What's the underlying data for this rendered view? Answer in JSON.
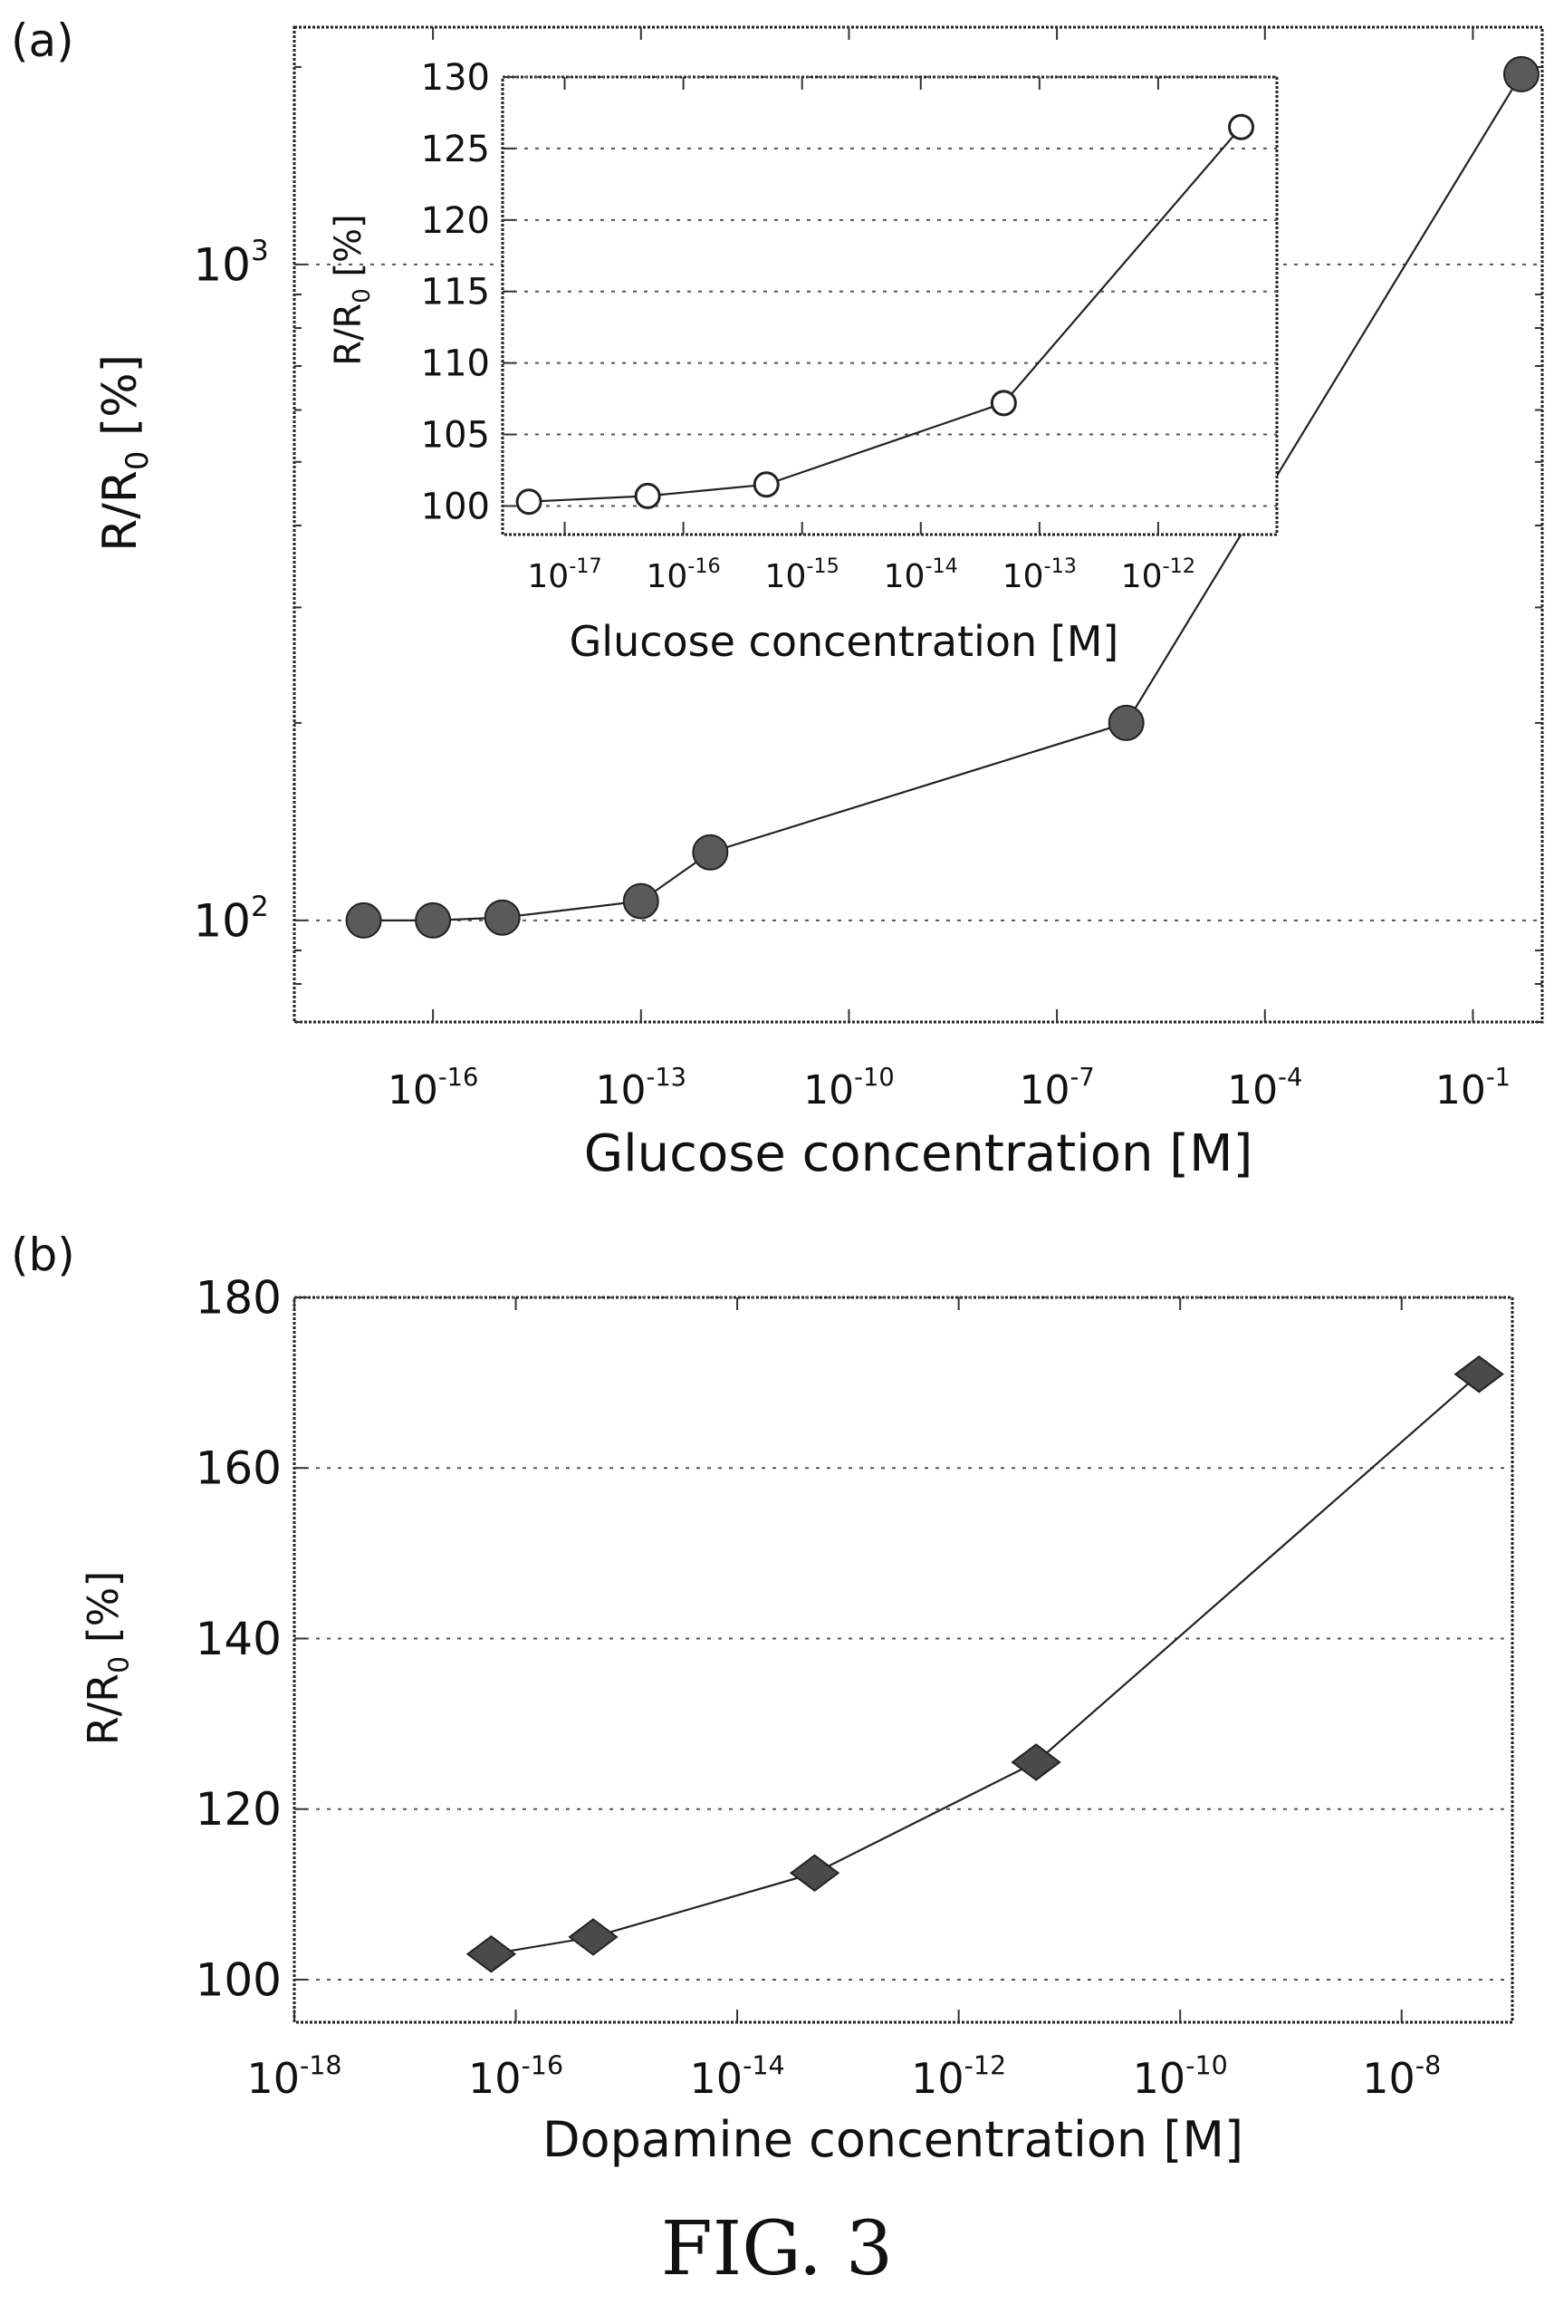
{
  "caption": "FIG. 3",
  "chart_data": [
    {
      "panel_label": "(a)",
      "type": "line",
      "xlabel": "Glucose concentration [M]",
      "ylabel": "R/R0 [%]",
      "xscale": "log",
      "yscale": "log",
      "xlim": [
        1e-18,
        1
      ],
      "ylim": [
        70,
        2300
      ],
      "xticks": [
        {
          "value": 1e-16,
          "base": "10",
          "exp": "-16"
        },
        {
          "value": 1e-13,
          "base": "10",
          "exp": "-13"
        },
        {
          "value": 1e-10,
          "base": "10",
          "exp": "-10"
        },
        {
          "value": 1e-07,
          "base": "10",
          "exp": "-7"
        },
        {
          "value": 0.0001,
          "base": "10",
          "exp": "-4"
        },
        {
          "value": 0.1,
          "base": "10",
          "exp": "-1"
        }
      ],
      "yticks": [
        {
          "value": 100,
          "base": "10",
          "exp": "2"
        },
        {
          "value": 1000,
          "base": "10",
          "exp": "3"
        }
      ],
      "series": [
        {
          "x": [
            1e-17,
            1e-16,
            1e-15,
            1e-13,
            1e-12,
            1e-06,
            0.5
          ],
          "y": [
            100,
            100,
            101,
            107,
            127,
            200,
            1950
          ]
        }
      ],
      "grid": true,
      "marker": "circle"
    },
    {
      "panel_label": "",
      "type": "line",
      "inset": true,
      "xlabel": "Glucose concentration [M]",
      "ylabel": "R/R0 [%]",
      "xscale": "log",
      "xlim": [
        3e-18,
        1e-11
      ],
      "ylim": [
        98,
        130
      ],
      "xticks": [
        {
          "value": 1e-17,
          "base": "10",
          "exp": "-17"
        },
        {
          "value": 1e-16,
          "base": "10",
          "exp": "-16"
        },
        {
          "value": 1e-15,
          "base": "10",
          "exp": "-15"
        },
        {
          "value": 1e-14,
          "base": "10",
          "exp": "-14"
        },
        {
          "value": 1e-13,
          "base": "10",
          "exp": "-13"
        },
        {
          "value": 1e-12,
          "base": "10",
          "exp": "-12"
        }
      ],
      "yticks": [
        100,
        105,
        110,
        115,
        120,
        125,
        130
      ],
      "series": [
        {
          "x": [
            5e-18,
            5e-17,
            5e-16,
            5e-14,
            5e-12
          ],
          "y": [
            100.3,
            100.7,
            101.5,
            107.2,
            126.5
          ]
        }
      ],
      "grid": true,
      "marker": "hollow-circle-with-errorbar"
    },
    {
      "panel_label": "(b)",
      "type": "line",
      "xlabel": "Dopamine concentration [M]",
      "ylabel": "R/R0 [%]",
      "xscale": "log",
      "xlim": [
        1e-18,
        1e-07
      ],
      "ylim": [
        95,
        180
      ],
      "xticks": [
        {
          "value": 1e-18,
          "base": "10",
          "exp": "-18"
        },
        {
          "value": 1e-16,
          "base": "10",
          "exp": "-16"
        },
        {
          "value": 1e-14,
          "base": "10",
          "exp": "-14"
        },
        {
          "value": 1e-12,
          "base": "10",
          "exp": "-12"
        },
        {
          "value": 1e-10,
          "base": "10",
          "exp": "-10"
        },
        {
          "value": 1e-08,
          "base": "10",
          "exp": "-8"
        }
      ],
      "yticks": [
        100,
        120,
        140,
        160,
        180
      ],
      "series": [
        {
          "x": [
            6e-17,
            5e-16,
            5e-14,
            5e-12,
            5e-08
          ],
          "y": [
            103,
            105,
            112.5,
            125.5,
            171
          ]
        }
      ],
      "grid": true,
      "marker": "diamond"
    }
  ]
}
